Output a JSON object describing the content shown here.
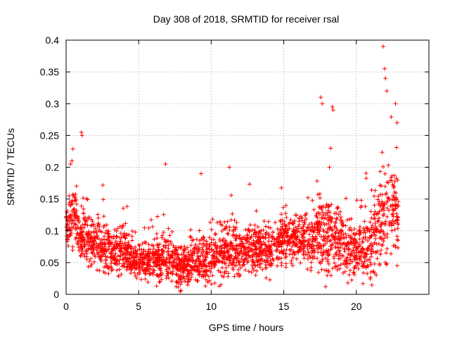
{
  "chart_data": {
    "type": "scatter",
    "title": "Day 308 of 2018, SRMTID for receiver rsal",
    "xlabel": "GPS time / hours",
    "ylabel": "SRMTID / TECUs",
    "xlim": [
      0,
      25
    ],
    "ylim": [
      0,
      0.4
    ],
    "xticks": [
      0,
      5,
      10,
      15,
      20
    ],
    "xtick_labels": [
      "0",
      "5",
      "10",
      "15",
      "20"
    ],
    "yticks": [
      0,
      0.05,
      0.1,
      0.15,
      0.2,
      0.25,
      0.3,
      0.35,
      0.4
    ],
    "ytick_labels": [
      "0",
      "0.05",
      "0.1",
      "0.15",
      "0.2",
      "0.25",
      "0.3",
      "0.35",
      "0.4"
    ],
    "grid": true,
    "marker": "+",
    "color": "#ff0000",
    "series_name": "SRMTID",
    "profile_hours": [
      0,
      0.5,
      1,
      2,
      3,
      4,
      5,
      6,
      7,
      8,
      9,
      10,
      11,
      12,
      13,
      14,
      15,
      16,
      17,
      17.5,
      18,
      19,
      20,
      21,
      21.8,
      22.5,
      23
    ],
    "profile_median": [
      0.1,
      0.13,
      0.09,
      0.08,
      0.07,
      0.07,
      0.05,
      0.05,
      0.06,
      0.04,
      0.06,
      0.06,
      0.07,
      0.07,
      0.07,
      0.07,
      0.09,
      0.09,
      0.08,
      0.1,
      0.09,
      0.08,
      0.07,
      0.08,
      0.12,
      0.13,
      0.12
    ],
    "profile_spread": [
      0.04,
      0.06,
      0.05,
      0.05,
      0.05,
      0.05,
      0.035,
      0.04,
      0.05,
      0.035,
      0.05,
      0.05,
      0.06,
      0.05,
      0.05,
      0.05,
      0.05,
      0.05,
      0.06,
      0.09,
      0.09,
      0.07,
      0.06,
      0.07,
      0.11,
      0.1,
      0.08
    ],
    "sample_count": 2600,
    "data_end_hour": 22.9,
    "peaks": [
      {
        "x": 0.3,
        "y": 0.205
      },
      {
        "x": 0.4,
        "y": 0.21
      },
      {
        "x": 1.05,
        "y": 0.255
      },
      {
        "x": 1.1,
        "y": 0.25
      },
      {
        "x": 6.85,
        "y": 0.205
      },
      {
        "x": 9.3,
        "y": 0.19
      },
      {
        "x": 11.25,
        "y": 0.2
      },
      {
        "x": 17.55,
        "y": 0.31
      },
      {
        "x": 17.65,
        "y": 0.3
      },
      {
        "x": 18.35,
        "y": 0.295
      },
      {
        "x": 18.4,
        "y": 0.29
      },
      {
        "x": 21.85,
        "y": 0.39
      },
      {
        "x": 21.95,
        "y": 0.355
      },
      {
        "x": 22.0,
        "y": 0.34
      },
      {
        "x": 22.1,
        "y": 0.32
      },
      {
        "x": 22.7,
        "y": 0.3
      },
      {
        "x": 22.8,
        "y": 0.27
      }
    ]
  }
}
